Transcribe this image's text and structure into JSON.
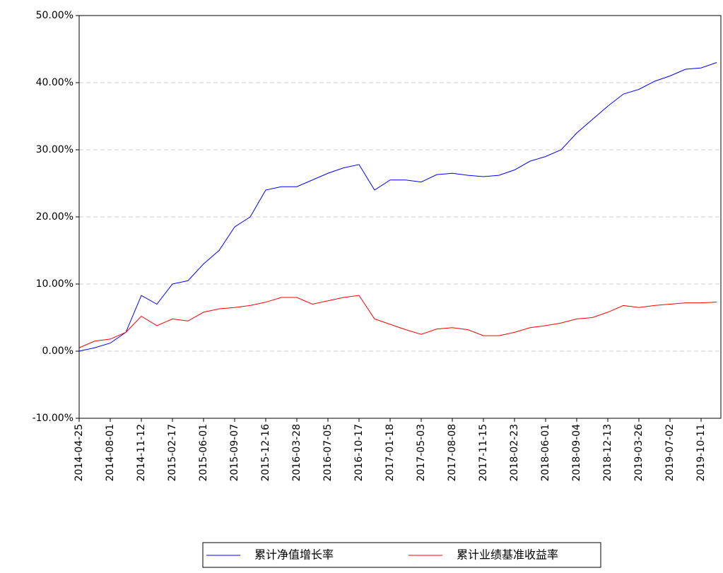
{
  "chart_data": {
    "type": "line",
    "categories": [
      "2014-04-25",
      null,
      "2014-08-01",
      null,
      "2014-11-12",
      null,
      "2015-02-17",
      null,
      "2015-06-01",
      null,
      "2015-09-07",
      null,
      "2015-12-16",
      null,
      "2016-03-28",
      null,
      "2016-07-05",
      null,
      "2016-10-17",
      null,
      "2017-01-18",
      null,
      "2017-05-03",
      null,
      "2017-08-08",
      null,
      "2017-11-15",
      null,
      "2018-02-23",
      null,
      "2018-06-01",
      null,
      "2018-09-04",
      null,
      "2018-12-13",
      null,
      "2019-03-26",
      null,
      "2019-07-02",
      null,
      "2019-10-11",
      null
    ],
    "series": [
      {
        "name": "累计净值增长率",
        "color": "#0000ff",
        "values": [
          0,
          0.5,
          1.2,
          2.8,
          8.3,
          7.0,
          10.0,
          10.5,
          13.0,
          15.0,
          18.5,
          20.0,
          24.0,
          24.5,
          24.5,
          25.5,
          26.5,
          27.3,
          27.8,
          24.0,
          25.5,
          25.5,
          25.2,
          26.3,
          26.5,
          26.2,
          26.0,
          26.2,
          27.0,
          28.3,
          29.0,
          30.0,
          32.5,
          34.5,
          36.5,
          38.3,
          39.0,
          40.2,
          41.0,
          42.0,
          42.2,
          43.0
        ]
      },
      {
        "name": "累计业绩基准收益率",
        "color": "#ff0000",
        "values": [
          0.5,
          1.5,
          1.8,
          2.8,
          5.2,
          3.8,
          4.8,
          4.5,
          5.8,
          6.3,
          6.5,
          6.8,
          7.3,
          8.0,
          8.0,
          7.0,
          7.5,
          8.0,
          8.3,
          4.8,
          4.0,
          3.2,
          2.5,
          3.3,
          3.5,
          3.2,
          2.3,
          2.3,
          2.8,
          3.5,
          3.8,
          4.2,
          4.8,
          5.0,
          5.8,
          6.8,
          6.5,
          6.8,
          7.0,
          7.2,
          7.2,
          7.3
        ]
      }
    ],
    "ylim": [
      -10,
      50
    ],
    "yticks": [
      {
        "value": -10,
        "label": "-10.00%"
      },
      {
        "value": 0,
        "label": "0.00%"
      },
      {
        "value": 10,
        "label": "10.00%"
      },
      {
        "value": 20,
        "label": "20.00%"
      },
      {
        "value": 30,
        "label": "30.00%"
      },
      {
        "value": 40,
        "label": "40.00%"
      },
      {
        "value": 50,
        "label": "50.00%"
      }
    ],
    "grid": true,
    "legend": "bottom"
  }
}
